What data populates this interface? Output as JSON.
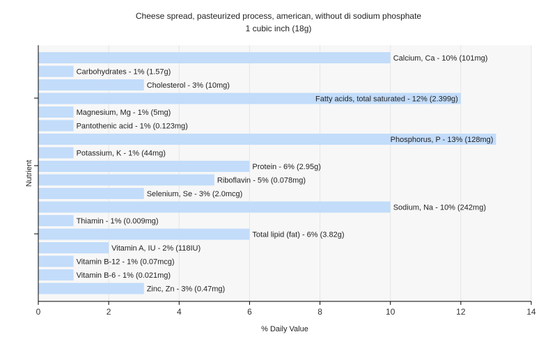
{
  "chart_data": {
    "type": "bar",
    "orientation": "horizontal",
    "title": "Cheese spread, pasteurized process, american, without di sodium phosphate",
    "subtitle": "1 cubic inch (18g)",
    "xlabel": "% Daily Value",
    "ylabel": "Nutrient",
    "xlim": [
      0,
      14
    ],
    "xticks": [
      0,
      2,
      4,
      6,
      8,
      10,
      12,
      14
    ],
    "grid": true,
    "bar_color": "#c2dcfa",
    "grid_color": "#e6e6e6",
    "plot_background": "#f7f7f7",
    "categories": [
      "Calcium, Ca",
      "Carbohydrates",
      "Cholesterol",
      "Fatty acids, total saturated",
      "Magnesium, Mg",
      "Pantothenic acid",
      "Phosphorus, P",
      "Potassium, K",
      "Protein",
      "Riboflavin",
      "Selenium, Se",
      "Sodium, Na",
      "Thiamin",
      "Total lipid (fat)",
      "Vitamin A, IU",
      "Vitamin B-12",
      "Vitamin B-6",
      "Zinc, Zn"
    ],
    "values": [
      10,
      1,
      3,
      12,
      1,
      1,
      13,
      1,
      6,
      5,
      3,
      10,
      1,
      6,
      2,
      1,
      1,
      3
    ],
    "labels": [
      "Calcium, Ca - 10% (101mg)",
      "Carbohydrates - 1% (1.57g)",
      "Cholesterol - 3% (10mg)",
      "Fatty acids, total saturated - 12% (2.399g)",
      "Magnesium, Mg - 1% (5mg)",
      "Pantothenic acid - 1% (0.123mg)",
      "Phosphorus, P - 13% (128mg)",
      "Potassium, K - 1% (44mg)",
      "Protein - 6% (2.95g)",
      "Riboflavin - 5% (0.078mg)",
      "Selenium, Se - 3% (2.0mcg)",
      "Sodium, Na - 10% (242mg)",
      "Thiamin - 1% (0.009mg)",
      "Total lipid (fat) - 6% (3.82g)",
      "Vitamin A, IU - 2% (118IU)",
      "Vitamin B-12 - 1% (0.07mcg)",
      "Vitamin B-6 - 1% (0.021mg)",
      "Zinc, Zn - 3% (0.47mg)"
    ]
  }
}
